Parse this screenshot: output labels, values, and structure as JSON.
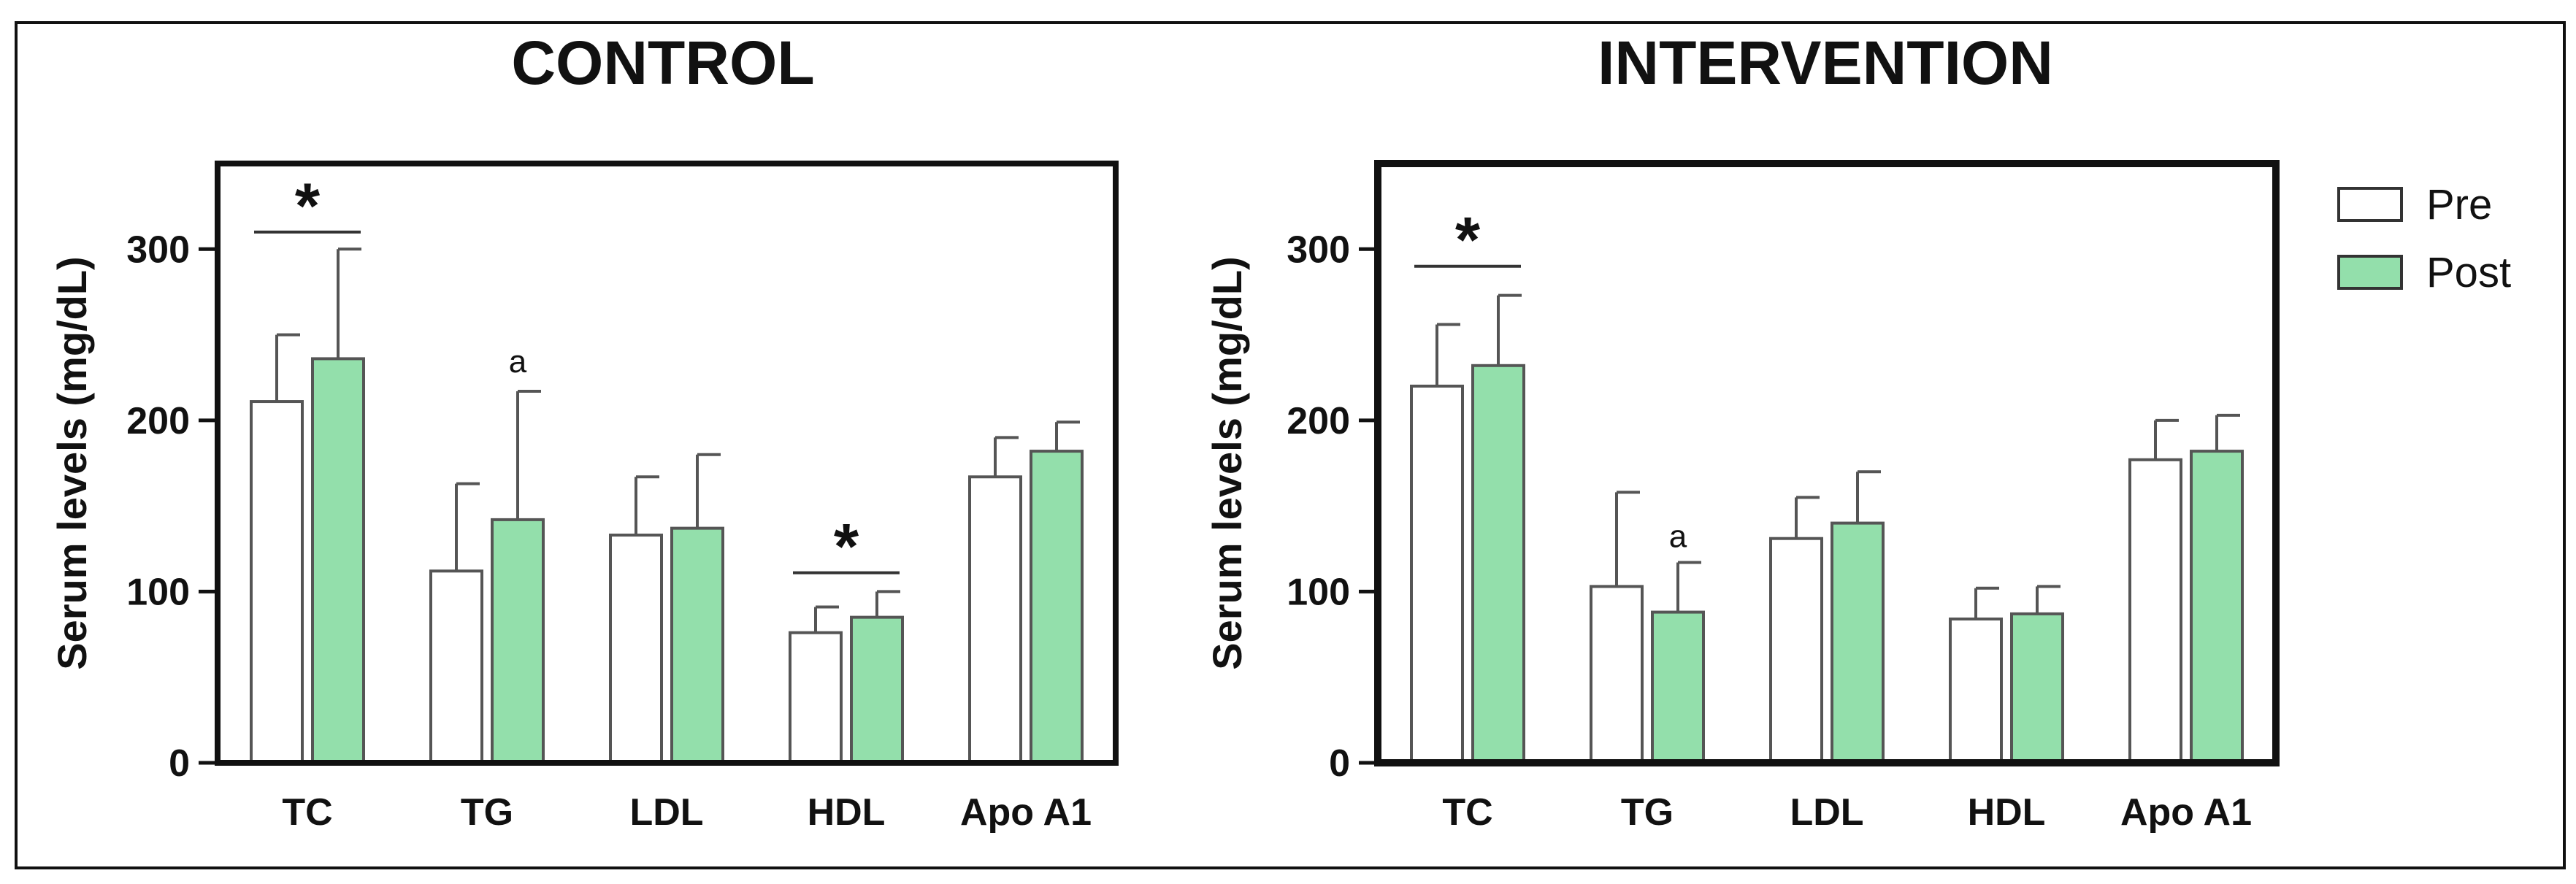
{
  "colors": {
    "pre": "#ffffff",
    "post": "#93dfab",
    "stroke": "#555555",
    "frame": "#111111"
  },
  "legend": {
    "items": [
      {
        "label": "Pre",
        "series": "pre"
      },
      {
        "label": "Post",
        "series": "post"
      }
    ]
  },
  "chart_data": [
    {
      "type": "bar",
      "title": "CONTROL",
      "ylabel": "Serum levels (mg/dL)",
      "xlabel": "",
      "ylim": [
        0,
        350
      ],
      "yticks": [
        0,
        100,
        200,
        300
      ],
      "categories": [
        "TC",
        "TG",
        "LDL",
        "HDL",
        "Apo A1"
      ],
      "series": [
        {
          "name": "Pre",
          "values": [
            211,
            112,
            133,
            76,
            167
          ],
          "errors": [
            39,
            51,
            34,
            15,
            23
          ]
        },
        {
          "name": "Post",
          "values": [
            236,
            142,
            137,
            85,
            182
          ],
          "errors": [
            64,
            75,
            43,
            15,
            17
          ]
        }
      ],
      "annotations": [
        {
          "text": "*",
          "category": "TC",
          "type": "bracket",
          "y": 310
        },
        {
          "text": "a",
          "category": "TG",
          "series": "Post",
          "y": 228
        },
        {
          "text": "*",
          "category": "HDL",
          "type": "bracket",
          "y": 111
        }
      ]
    },
    {
      "type": "bar",
      "title": "INTERVENTION",
      "ylabel": "Serum levels (mg/dL)",
      "xlabel": "",
      "ylim": [
        0,
        350
      ],
      "yticks": [
        0,
        100,
        200,
        300
      ],
      "categories": [
        "TC",
        "TG",
        "LDL",
        "HDL",
        "Apo A1"
      ],
      "series": [
        {
          "name": "Pre",
          "values": [
            220,
            103,
            131,
            84,
            177
          ],
          "errors": [
            36,
            55,
            24,
            18,
            23
          ]
        },
        {
          "name": "Post",
          "values": [
            232,
            88,
            140,
            87,
            182
          ],
          "errors": [
            41,
            29,
            30,
            16,
            21
          ]
        }
      ],
      "annotations": [
        {
          "text": "*",
          "category": "TC",
          "type": "bracket",
          "y": 290
        },
        {
          "text": "a",
          "category": "TG",
          "series": "Post",
          "y": 126
        }
      ]
    }
  ]
}
